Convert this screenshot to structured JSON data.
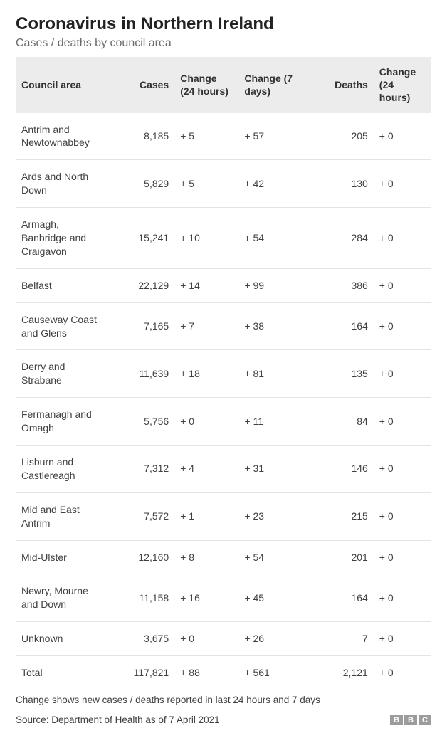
{
  "header": {
    "title": "Coronavirus in Northern Ireland",
    "subtitle": "Cases / deaths by council area"
  },
  "table": {
    "type": "table",
    "background_color": "#ffffff",
    "header_bg": "#ececec",
    "row_border_color": "#e4e4e4",
    "text_color": "#404040",
    "header_fontsize": 14,
    "cell_fontsize": 14,
    "columns": [
      {
        "key": "area",
        "label": "Council area",
        "width": 118,
        "align": "left"
      },
      {
        "key": "cases",
        "label": "Cases",
        "width": 80,
        "align": "right"
      },
      {
        "key": "cases_change_24h",
        "label": "Change (24 hours)",
        "width": 80,
        "align": "left"
      },
      {
        "key": "cases_change_7d",
        "label": "Change (7 days)",
        "width": 90,
        "align": "left"
      },
      {
        "key": "deaths",
        "label": "Deaths",
        "width": 78,
        "align": "right"
      },
      {
        "key": "deaths_change_24h",
        "label": "Change (24 hours)",
        "width": 72,
        "align": "left"
      }
    ],
    "rows": [
      {
        "area": "Antrim and Newtownabbey",
        "cases": "8,185",
        "cases_change_24h": "+ 5",
        "cases_change_7d": "+ 57",
        "deaths": "205",
        "deaths_change_24h": "+ 0"
      },
      {
        "area": "Ards and North Down",
        "cases": "5,829",
        "cases_change_24h": "+ 5",
        "cases_change_7d": "+ 42",
        "deaths": "130",
        "deaths_change_24h": "+ 0"
      },
      {
        "area": "Armagh, Banbridge and Craigavon",
        "cases": "15,241",
        "cases_change_24h": "+ 10",
        "cases_change_7d": "+ 54",
        "deaths": "284",
        "deaths_change_24h": "+ 0"
      },
      {
        "area": "Belfast",
        "cases": "22,129",
        "cases_change_24h": "+ 14",
        "cases_change_7d": "+ 99",
        "deaths": "386",
        "deaths_change_24h": "+ 0"
      },
      {
        "area": "Causeway Coast and Glens",
        "cases": "7,165",
        "cases_change_24h": "+ 7",
        "cases_change_7d": "+ 38",
        "deaths": "164",
        "deaths_change_24h": "+ 0"
      },
      {
        "area": "Derry and Strabane",
        "cases": "11,639",
        "cases_change_24h": "+ 18",
        "cases_change_7d": "+ 81",
        "deaths": "135",
        "deaths_change_24h": "+ 0"
      },
      {
        "area": "Fermanagh and Omagh",
        "cases": "5,756",
        "cases_change_24h": "+ 0",
        "cases_change_7d": "+ 11",
        "deaths": "84",
        "deaths_change_24h": "+ 0"
      },
      {
        "area": "Lisburn and Castlereagh",
        "cases": "7,312",
        "cases_change_24h": "+ 4",
        "cases_change_7d": "+ 31",
        "deaths": "146",
        "deaths_change_24h": "+ 0"
      },
      {
        "area": "Mid and East Antrim",
        "cases": "7,572",
        "cases_change_24h": "+ 1",
        "cases_change_7d": "+ 23",
        "deaths": "215",
        "deaths_change_24h": "+ 0"
      },
      {
        "area": "Mid-Ulster",
        "cases": "12,160",
        "cases_change_24h": "+ 8",
        "cases_change_7d": "+ 54",
        "deaths": "201",
        "deaths_change_24h": "+ 0"
      },
      {
        "area": "Newry, Mourne and Down",
        "cases": "11,158",
        "cases_change_24h": "+ 16",
        "cases_change_7d": "+ 45",
        "deaths": "164",
        "deaths_change_24h": "+ 0"
      },
      {
        "area": "Unknown",
        "cases": "3,675",
        "cases_change_24h": "+ 0",
        "cases_change_7d": "+ 26",
        "deaths": "7",
        "deaths_change_24h": "+ 0"
      },
      {
        "area": "Total",
        "cases": "117,821",
        "cases_change_24h": "+ 88",
        "cases_change_7d": "+ 561",
        "deaths": "2,121",
        "deaths_change_24h": "+ 0"
      }
    ]
  },
  "footer": {
    "note": "Change shows new cases / deaths reported in last 24 hours and 7 days",
    "source": "Source: Department of Health as of 7 April 2021",
    "logo_letters": [
      "B",
      "B",
      "C"
    ],
    "logo_color": "#9c9c9c"
  }
}
